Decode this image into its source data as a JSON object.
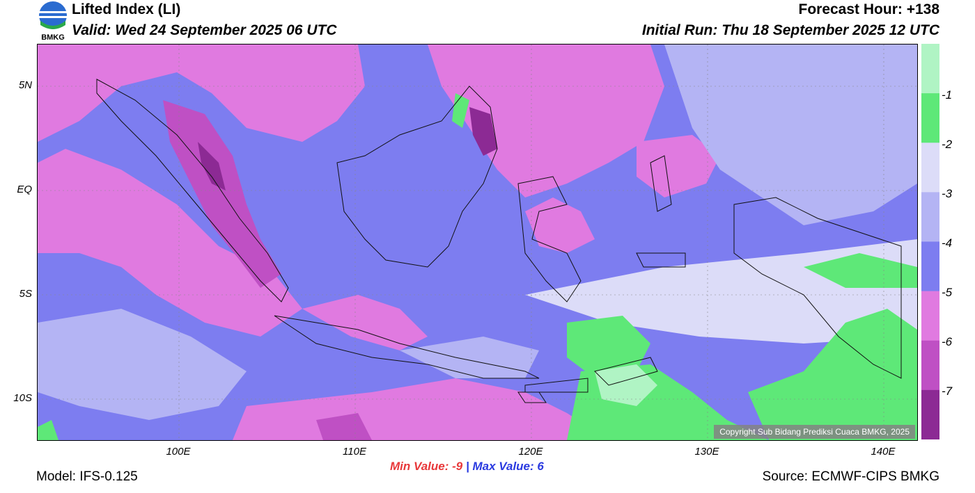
{
  "header": {
    "title": "Lifted Index (LI)",
    "valid": "Valid: Wed 24 September 2025 06 UTC",
    "forecast_hour": "Forecast Hour: +138",
    "initial_run": "Initial Run: Thu 18 September 2025 12 UTC",
    "logo_text": "BMKG"
  },
  "axes": {
    "y_ticks": [
      "5N",
      "EQ",
      "5S",
      "10S"
    ],
    "x_ticks": [
      "100E",
      "110E",
      "120E",
      "130E",
      "140E"
    ]
  },
  "legend": {
    "labels": [
      "-1",
      "-2",
      "-3",
      "-4",
      "-5",
      "-6",
      "-7"
    ],
    "colors": [
      "#b0f4c4",
      "#5ee878",
      "#dcdcf8",
      "#b4b4f4",
      "#7d7df0",
      "#e07ae0",
      "#bf50c4",
      "#8c2a94"
    ]
  },
  "footer": {
    "min_label": "Min Value:",
    "min_value": "-9",
    "separator": "|",
    "max_label": "Max Value:",
    "max_value": "6",
    "model": "Model: IFS-0.125",
    "source": "Source: ECMWF-CIPS BMKG",
    "copyright": "Copyright Sub Bidang Prediksi Cuaca BMKG, 2025"
  },
  "colors": {
    "min": "#e8383a",
    "max": "#2a3ae0"
  }
}
